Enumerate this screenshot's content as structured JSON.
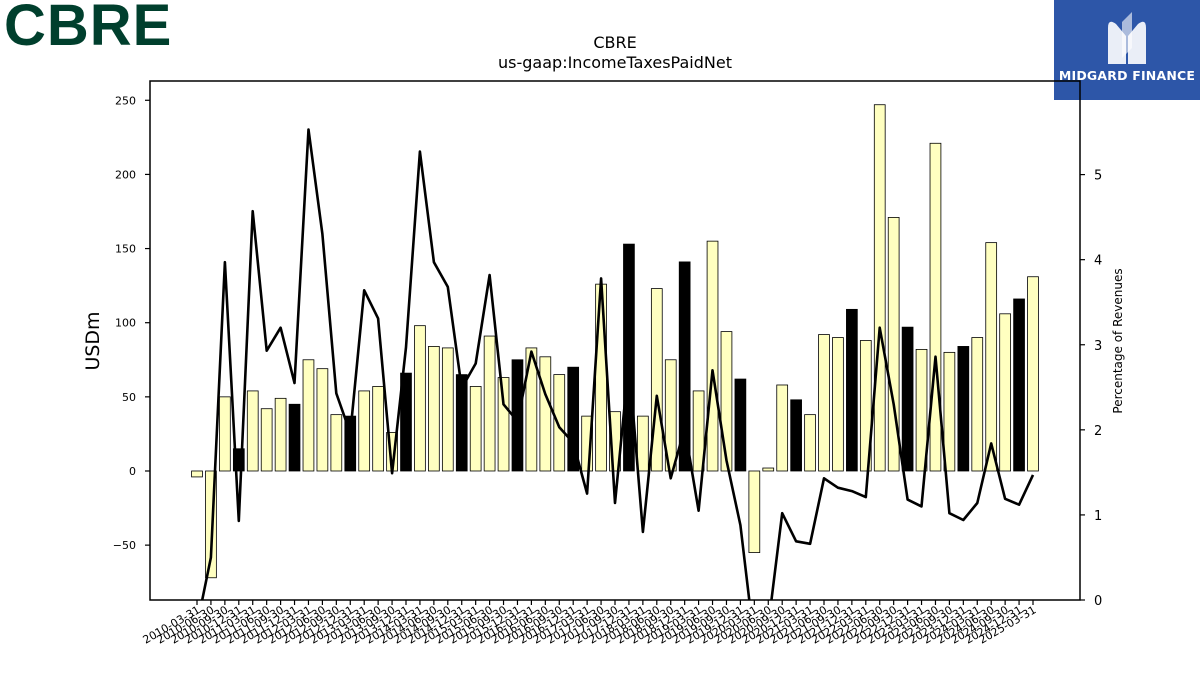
{
  "brand": {
    "name": "CBRE",
    "color": "#003f2d"
  },
  "badge": {
    "text": "MIDGARD FINANCE",
    "background": "#2d56a8",
    "logo_icon": "midgard-m-logo-icon"
  },
  "chart_data": {
    "type": "bar",
    "title": "CBRE",
    "subtitle": "us-gaap:IncomeTaxesPaidNet",
    "ylabel": "USDm",
    "y2label": "Percentage of Revenues",
    "ylim": [
      -87,
      263
    ],
    "y2lim": [
      0,
      6.1
    ],
    "yticks": [
      -50,
      0,
      50,
      100,
      150,
      200,
      250
    ],
    "y2ticks": [
      0,
      1,
      2,
      3,
      4,
      5
    ],
    "grid": false,
    "bar_colors": {
      "quarter": "#ffffc0",
      "year_end": "#000000"
    },
    "line_color": "#000000",
    "categories": [
      "2010-03-31",
      "2010-06-30",
      "2010-09-30",
      "2010-12-31",
      "2011-03-31",
      "2011-06-30",
      "2011-09-30",
      "2011-12-31",
      "2012-03-31",
      "2012-06-30",
      "2012-09-30",
      "2012-12-31",
      "2013-03-31",
      "2013-06-30",
      "2013-09-30",
      "2013-12-31",
      "2014-03-31",
      "2014-06-30",
      "2014-09-30",
      "2014-12-31",
      "2015-03-31",
      "2015-06-30",
      "2015-09-30",
      "2015-12-31",
      "2016-03-31",
      "2016-06-30",
      "2016-09-30",
      "2016-12-31",
      "2017-03-31",
      "2017-06-30",
      "2017-09-30",
      "2017-12-31",
      "2018-03-31",
      "2018-06-30",
      "2018-09-30",
      "2018-12-31",
      "2019-03-31",
      "2019-06-30",
      "2019-09-30",
      "2019-12-31",
      "2020-03-31",
      "2020-06-30",
      "2020-09-30",
      "2020-12-31",
      "2021-03-31",
      "2021-06-30",
      "2021-09-30",
      "2021-12-31",
      "2022-03-31",
      "2022-06-30",
      "2022-09-30",
      "2022-12-31",
      "2023-03-31",
      "2023-06-30",
      "2023-09-30",
      "2023-12-31",
      "2024-03-31",
      "2024-06-30",
      "2024-09-30",
      "2024-12-31",
      "2025-03-31"
    ],
    "values": [
      -4,
      -72,
      50,
      15,
      54,
      42,
      49,
      45,
      75,
      69,
      38,
      37,
      54,
      57,
      26,
      66,
      98,
      84,
      83,
      65,
      57,
      91,
      63,
      75,
      83,
      77,
      65,
      70,
      37,
      126,
      40,
      153,
      37,
      123,
      75,
      141,
      54,
      155,
      94,
      62,
      -55,
      2,
      58,
      48,
      38,
      92,
      90,
      109,
      88,
      247,
      171,
      97,
      82,
      221,
      80,
      84,
      90,
      154,
      106,
      116,
      131
    ],
    "series": [
      {
        "values": [
          -0.3,
          0.5,
          3.97,
          0.93,
          4.57,
          2.93,
          3.2,
          2.55,
          5.53,
          4.3,
          2.43,
          1.96,
          3.64,
          3.31,
          1.49,
          2.97,
          5.27,
          3.97,
          3.68,
          2.49,
          2.78,
          3.82,
          2.3,
          2.1,
          2.92,
          2.42,
          2.03,
          1.85,
          1.25,
          3.78,
          1.14,
          2.8,
          0.8,
          2.4,
          1.43,
          2.02,
          1.05,
          2.7,
          1.64,
          0.88,
          -0.5,
          -0.3,
          1.02,
          0.69,
          0.66,
          1.43,
          1.32,
          1.28,
          1.21,
          3.2,
          2.3,
          1.18,
          1.1,
          2.86,
          1.02,
          0.94,
          1.14,
          1.84,
          1.19,
          1.12,
          1.47
        ]
      }
    ]
  }
}
